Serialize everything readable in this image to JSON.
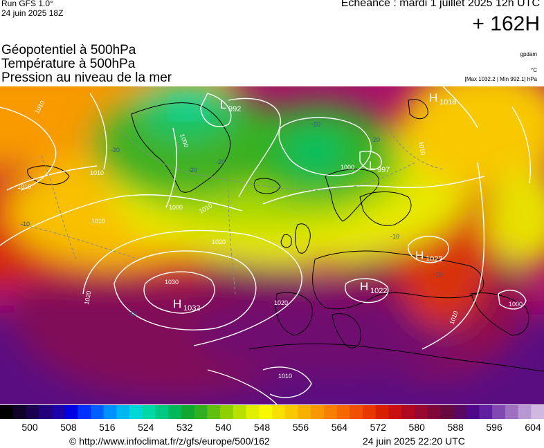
{
  "header": {
    "run": "Run GFS 1.0°",
    "run_date": "24 juin 2025 18Z",
    "echeance": "Echéance : mardi 1 juillet 2025 12h UTC",
    "lead": "+ 162H"
  },
  "titles": {
    "geopotential": "Géopotentiel à 500hPa",
    "temperature": "Température à 500hPa",
    "pressure": "Pression au niveau de la mer"
  },
  "units": {
    "geopotential": "gpdam",
    "temperature": "°C",
    "maxmin": "[Max 1032.2 | Min 992.1] hPa"
  },
  "map": {
    "pressure_centers": [
      {
        "type": "H",
        "value": "1032"
      },
      {
        "type": "H",
        "value": "1022"
      },
      {
        "type": "H",
        "value": "1022"
      },
      {
        "type": "H",
        "value": "1018"
      },
      {
        "type": "L",
        "value": "992"
      },
      {
        "type": "L",
        "value": "997"
      }
    ],
    "isobar_labels": [
      "1010",
      "1010",
      "1010",
      "1010",
      "1000",
      "1000",
      "1000",
      "1020",
      "1020",
      "1020",
      "1030",
      "1010",
      "1010",
      "1000",
      "1010",
      "1010"
    ],
    "temperature_labels": [
      "-20",
      "-20",
      "-20",
      "-20",
      "-20",
      "-10",
      "-10",
      "-10",
      "-10"
    ]
  },
  "scale": {
    "colors": [
      "#000000",
      "#10002a",
      "#1c0050",
      "#22007a",
      "#1c00a8",
      "#0000e0",
      "#0030ff",
      "#0060ff",
      "#0090ff",
      "#00b8f0",
      "#00d8d8",
      "#00d8a8",
      "#00c880",
      "#00b858",
      "#10a830",
      "#30b020",
      "#60c010",
      "#90d000",
      "#b8e000",
      "#e0f000",
      "#f8f800",
      "#f8e000",
      "#f8c800",
      "#f8b000",
      "#f89800",
      "#f88000",
      "#f86800",
      "#f05000",
      "#e83800",
      "#d82000",
      "#c81010",
      "#b00820",
      "#980830",
      "#800838",
      "#680840",
      "#580860",
      "#50088a",
      "#6020a0",
      "#8048b0",
      "#a070c0",
      "#b898d0",
      "#d0b8e0"
    ],
    "labels": [
      "500",
      "508",
      "516",
      "524",
      "532",
      "540",
      "548",
      "556",
      "564",
      "572",
      "580",
      "588",
      "596",
      "604"
    ]
  },
  "footer": {
    "copyright": "© http://www.infoclimat.fr/z/gfs/europe/500/162",
    "generated": "24 juin 2025 22:20 UTC"
  }
}
